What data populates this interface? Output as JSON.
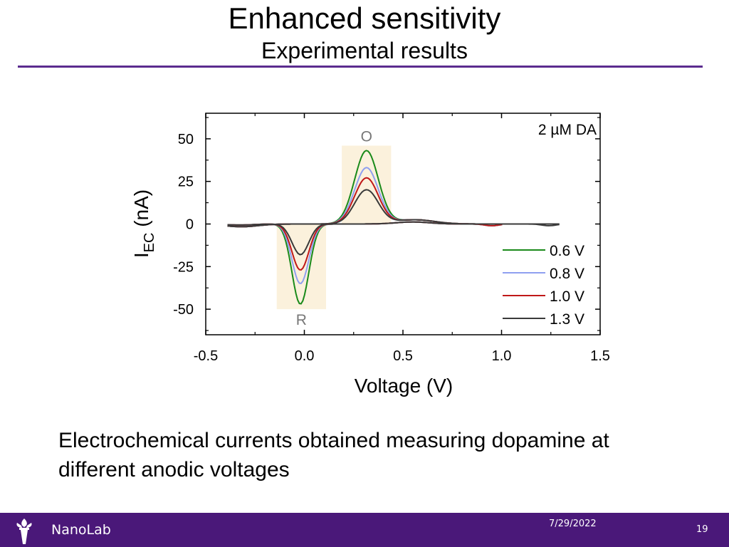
{
  "slide": {
    "title": "Enhanced sensitivity",
    "subtitle": "Experimental results",
    "caption": "Electrochemical currents obtained measuring dopamine at different anodic voltages"
  },
  "footer": {
    "org": "NanoLab",
    "date": "7/29/2022",
    "page": "19"
  },
  "colors": {
    "accent": "#5b2c8f",
    "footer_bg": "#4a1879",
    "highlight": "#fbf1dc"
  },
  "chart_data": {
    "type": "line",
    "xlabel": "Voltage (V)",
    "ylabel_main": "I",
    "ylabel_sub": "EC",
    "ylabel_unit": " (nA)",
    "xlim": [
      -0.5,
      1.5
    ],
    "ylim": [
      -65,
      65
    ],
    "xticks": [
      -0.5,
      0.0,
      0.5,
      1.0,
      1.5
    ],
    "xtick_labels": [
      "-0.5",
      "0.0",
      "0.5",
      "1.0",
      "1.5"
    ],
    "yticks": [
      -50,
      -25,
      0,
      25,
      50
    ],
    "ytick_labels": [
      "-50",
      "-25",
      "0",
      "25",
      "50"
    ],
    "annotation": "2 µM DA",
    "regions": [
      {
        "label": "O",
        "x": [
          0.19,
          0.44
        ],
        "y": [
          0,
          46
        ]
      },
      {
        "label": "R",
        "x": [
          -0.14,
          0.11
        ],
        "y": [
          -50,
          0
        ]
      }
    ],
    "legend_position": "bottom-right",
    "grid": false,
    "series": [
      {
        "name": "0.6 V",
        "color": "#1a8a1a",
        "ox_peak": 43,
        "red_peak": -47,
        "x_end": 1.0
      },
      {
        "name": "0.8 V",
        "color": "#8f9ff0",
        "ox_peak": 33,
        "red_peak": -35,
        "x_end": 1.0
      },
      {
        "name": "1.0 V",
        "color": "#c01818",
        "ox_peak": 27,
        "red_peak": -27,
        "x_end": 1.0
      },
      {
        "name": "1.3 V",
        "color": "#3a3a3a",
        "ox_peak": 20,
        "red_peak": -18,
        "x_end": 1.29
      }
    ]
  }
}
